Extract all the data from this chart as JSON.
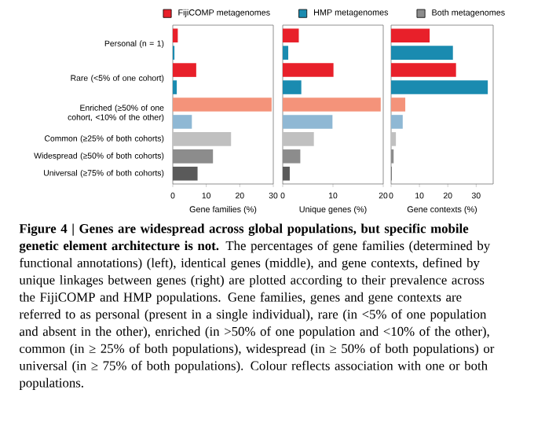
{
  "chart_data": [
    {
      "type": "bar",
      "orientation": "horizontal",
      "legend": "top",
      "title": "Figure 4 | Genes are widespread across global populations, but specific mobile genetic element architecture is not.",
      "annotations": [
        "The percentages of gene families (determined by functional annotations) (left), identical genes (middle), and gene contexts, defined by unique linkages between genes (right) are plotted according to their prevalence across the FijiCOMP and HMP populations. Gene families, genes and gene contexts are referred to as personal (present in a single individual), rare (in <5% of one population and absent in the other), enriched (in >50% of one population and <10% of the other), common (in ≥ 25% of both populations), widespread (in ≥ 50% of both populations) or universal (in ≥ 75% of both populations). Colour reflects association with one or both populations."
      ],
      "categories": [
        "Personal (n = 1)",
        "Rare (<5% of one cohort)",
        "Enriched (≥50% of one cohort, <10% of the other)",
        "Common (≥25% of both cohorts)",
        "Widespread (≥50% of both cohorts)",
        "Universal (≥75% of both cohorts)"
      ],
      "xlabel": "Gene families (%)",
      "xlim": [
        0,
        30
      ],
      "xticks": [
        0,
        10,
        20,
        30
      ],
      "series": [
        {
          "name": "FijiCOMP metagenomes",
          "color": "#e8202a",
          "colors": [
            "#e8202a",
            "#e8202a",
            "#f4937a",
            null,
            null,
            null
          ],
          "values": [
            1.5,
            7,
            29.5,
            null,
            null,
            null
          ]
        },
        {
          "name": "HMP metagenomes",
          "color": "#1a8bb0",
          "colors": [
            "#1a8bb0",
            "#1a8bb0",
            "#8fb8d4",
            null,
            null,
            null
          ],
          "values": [
            0.5,
            1.2,
            5.7,
            null,
            null,
            null
          ]
        },
        {
          "name": "Both metagenomes",
          "color": "#8c8c8c",
          "colors": [
            null,
            null,
            null,
            "#c0c0c0",
            "#8c8c8c",
            "#5a5a5a"
          ],
          "values": [
            null,
            null,
            null,
            17.4,
            12,
            7.4
          ]
        }
      ]
    },
    {
      "type": "bar",
      "orientation": "horizontal",
      "tick_labels": "x",
      "categories": [
        null,
        null,
        null,
        null,
        null,
        null,
        null,
        null,
        null
      ],
      "xlabel": "Unique genes (%)",
      "xlim": [
        0,
        20
      ],
      "xticks": [
        0,
        10,
        20
      ],
      "series": [
        {
          "colors": [
            "#e8202a",
            "#1a8bb0",
            "#e8202a",
            "#1a8bb0",
            "#f4937a",
            "#8fb8d4",
            "#c0c0c0",
            "#8c8c8c",
            "#5a5a5a"
          ],
          "values": [
            3.2,
            1.1,
            10.1,
            3.7,
            19.5,
            9.9,
            6.2,
            3.5,
            1.4
          ]
        }
      ]
    },
    {
      "type": "bar",
      "orientation": "horizontal",
      "tick_labels": "x",
      "categories": [
        null,
        null,
        null,
        null,
        null,
        null,
        null,
        null,
        null
      ],
      "xlabel": "Gene contexts (%)",
      "xlim": [
        0,
        36
      ],
      "xticks": [
        0,
        10,
        20,
        30
      ],
      "series": [
        {
          "colors": [
            "#e8202a",
            "#1a8bb0",
            "#e8202a",
            "#1a8bb0",
            "#f4937a",
            "#8fb8d4",
            "#c0c0c0",
            "#8c8c8c",
            "#5a5a5a"
          ],
          "values": [
            13.6,
            21.8,
            22.9,
            34.1,
            5,
            4.1,
            1.7,
            0.9,
            0.2
          ]
        }
      ]
    }
  ]
}
